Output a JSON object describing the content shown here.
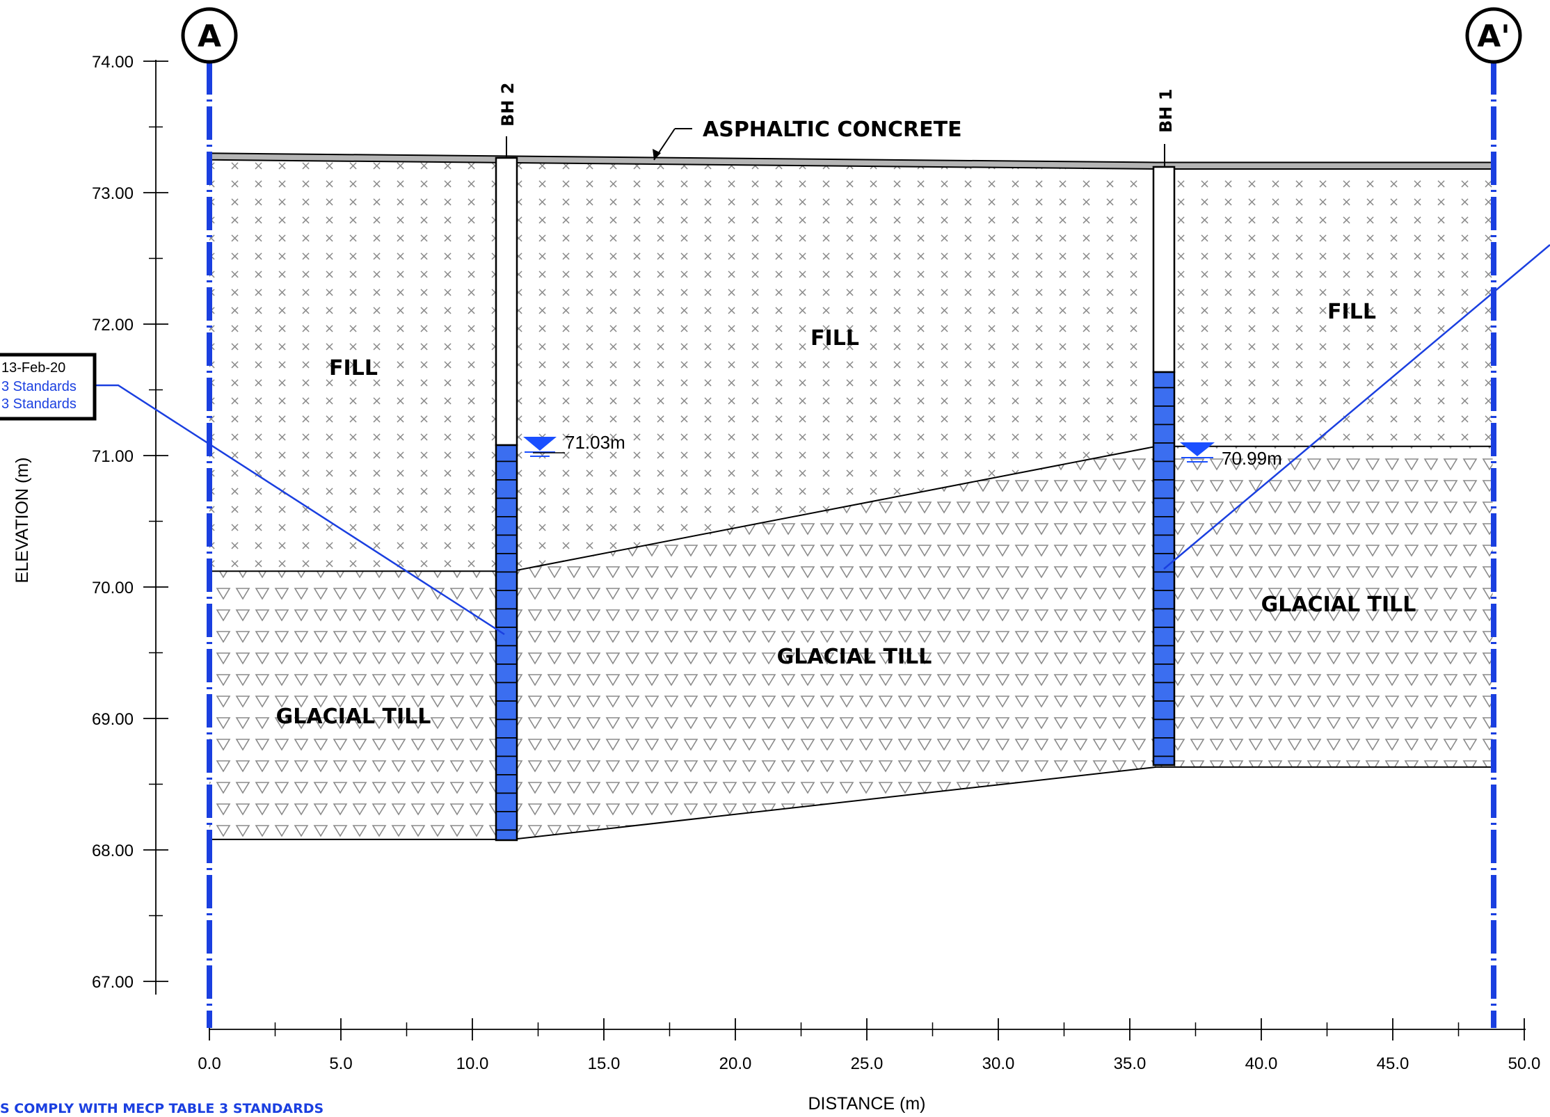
{
  "section": {
    "start_label": "A",
    "end_label": "A'"
  },
  "axes": {
    "x_title": "DISTANCE (m)",
    "y_title": "ELEVATION (m)",
    "x_ticks": [
      "0.0",
      "5.0",
      "10.0",
      "15.0",
      "20.0",
      "25.0",
      "30.0",
      "35.0",
      "40.0",
      "45.0",
      "50.0"
    ],
    "y_ticks": [
      "74.00",
      "73.00",
      "72.00",
      "71.00",
      "70.00",
      "69.00",
      "68.00",
      "67.00"
    ]
  },
  "units": {
    "asphalt": "ASPHALTIC CONCRETE",
    "fill_left": "FILL",
    "fill_mid": "FILL",
    "fill_right": "FILL",
    "till_left": "GLACIAL TILL",
    "till_mid": "GLACIAL TILL",
    "till_right": "GLACIAL TILL"
  },
  "boreholes": [
    {
      "label": "BH 2",
      "water_level": "71.03m"
    },
    {
      "label": "BH 1",
      "water_level": "70.99m"
    }
  ],
  "note_box": {
    "line1": "13-Feb-20",
    "line2": "3 Standards",
    "line3": "3 Standards"
  },
  "footer_note": "S COMPLY WITH MECP TABLE 3 STANDARDS",
  "colors": {
    "screen_blue": "#3b6ef0",
    "section_blue": "#1a3fe0",
    "water_blue": "#1a4fff"
  },
  "chart_data": {
    "type": "cross-section",
    "x_range": [
      0,
      50
    ],
    "y_range": [
      67,
      74
    ],
    "ground_surface": [
      [
        0,
        73.25
      ],
      [
        36,
        73.18
      ],
      [
        48.8,
        73.18
      ]
    ],
    "fill_till_contact": [
      [
        0,
        70.12
      ],
      [
        11.5,
        70.12
      ],
      [
        36,
        71.07
      ],
      [
        48.8,
        71.07
      ]
    ],
    "till_base": [
      [
        0,
        68.08
      ],
      [
        11.5,
        68.08
      ],
      [
        36,
        68.63
      ],
      [
        48.8,
        68.63
      ]
    ],
    "boreholes": [
      {
        "name": "BH 2",
        "x": 11.3,
        "top": 73.27,
        "bottom": 68.07,
        "screen_top": 71.08,
        "water_level": 71.03
      },
      {
        "name": "BH 1",
        "x": 36.2,
        "top": 73.2,
        "bottom": 68.63,
        "screen_top": 71.63,
        "water_level": 70.99
      }
    ]
  }
}
